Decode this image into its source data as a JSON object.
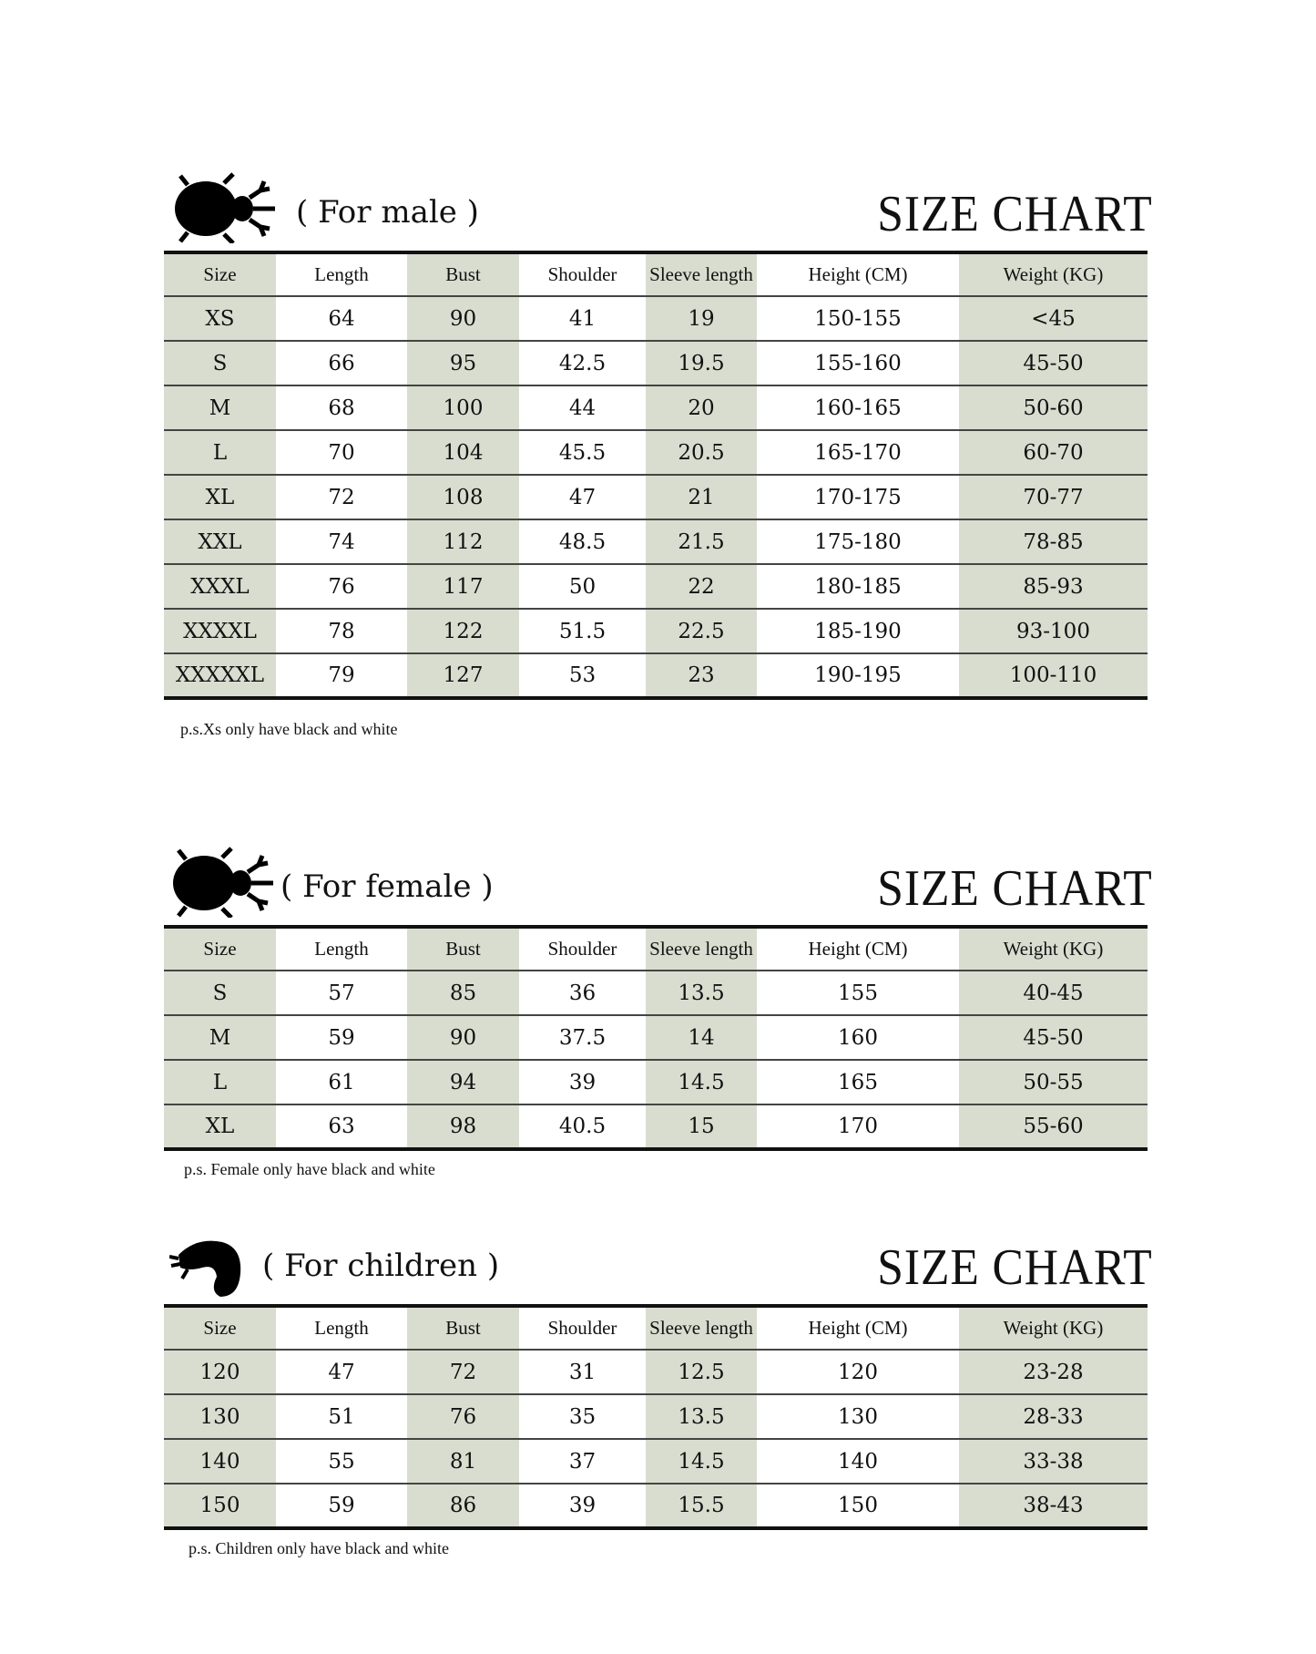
{
  "columns": [
    "Size",
    "Length",
    "Bust",
    "Shoulder",
    "Sleeve length",
    "Height (CM)",
    "Weight (KG)"
  ],
  "shade_color": "#d9ddd0",
  "sections": [
    {
      "id": "male",
      "icon": "beetle-icon",
      "subtitle": "( For male )",
      "title": "SIZE CHART",
      "rows": [
        [
          "XS",
          "64",
          "90",
          "41",
          "19",
          "150-155",
          "<45"
        ],
        [
          "S",
          "66",
          "95",
          "42.5",
          "19.5",
          "155-160",
          "45-50"
        ],
        [
          "M",
          "68",
          "100",
          "44",
          "20",
          "160-165",
          "50-60"
        ],
        [
          "L",
          "70",
          "104",
          "45.5",
          "20.5",
          "165-170",
          "60-70"
        ],
        [
          "XL",
          "72",
          "108",
          "47",
          "21",
          "170-175",
          "70-77"
        ],
        [
          "XXL",
          "74",
          "112",
          "48.5",
          "21.5",
          "175-180",
          "78-85"
        ],
        [
          "XXXL",
          "76",
          "117",
          "50",
          "22",
          "180-185",
          "85-93"
        ],
        [
          "XXXXL",
          "78",
          "122",
          "51.5",
          "22.5",
          "185-190",
          "93-100"
        ],
        [
          "XXXXXL",
          "79",
          "127",
          "53",
          "23",
          "190-195",
          "100-110"
        ]
      ],
      "note": "p.s.Xs only have black and white"
    },
    {
      "id": "female",
      "icon": "beetle-icon",
      "subtitle": "( For female )",
      "title": "SIZE CHART",
      "rows": [
        [
          "S",
          "57",
          "85",
          "36",
          "13.5",
          "155",
          "40-45"
        ],
        [
          "M",
          "59",
          "90",
          "37.5",
          "14",
          "160",
          "45-50"
        ],
        [
          "L",
          "61",
          "94",
          "39",
          "14.5",
          "165",
          "50-55"
        ],
        [
          "XL",
          "63",
          "98",
          "40.5",
          "15",
          "170",
          "55-60"
        ]
      ],
      "note": "p.s. Female only have black and white"
    },
    {
      "id": "children",
      "icon": "larva-icon",
      "subtitle": "( For children )",
      "title": "SIZE CHART",
      "rows": [
        [
          "120",
          "47",
          "72",
          "31",
          "12.5",
          "120",
          "23-28"
        ],
        [
          "130",
          "51",
          "76",
          "35",
          "13.5",
          "130",
          "28-33"
        ],
        [
          "140",
          "55",
          "81",
          "37",
          "14.5",
          "140",
          "33-38"
        ],
        [
          "150",
          "59",
          "86",
          "39",
          "15.5",
          "150",
          "38-43"
        ]
      ],
      "note": "p.s. Children only have black and white"
    }
  ]
}
